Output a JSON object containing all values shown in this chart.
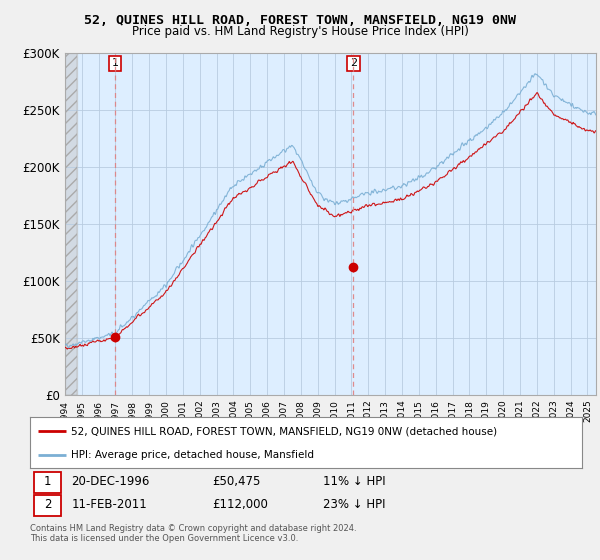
{
  "title": "52, QUINES HILL ROAD, FOREST TOWN, MANSFIELD, NG19 0NW",
  "subtitle": "Price paid vs. HM Land Registry's House Price Index (HPI)",
  "ylim": [
    0,
    300000
  ],
  "yticks": [
    0,
    50000,
    100000,
    150000,
    200000,
    250000,
    300000
  ],
  "ytick_labels": [
    "£0",
    "£50K",
    "£100K",
    "£150K",
    "£200K",
    "£250K",
    "£300K"
  ],
  "xstart": 1994.0,
  "xend": 2025.5,
  "sale1_date": 1996.97,
  "sale1_price": 50475,
  "sale2_date": 2011.12,
  "sale2_price": 112000,
  "sale1_date_str": "20-DEC-1996",
  "sale1_price_str": "£50,475",
  "sale1_hpi_str": "11% ↓ HPI",
  "sale2_date_str": "11-FEB-2011",
  "sale2_price_str": "£112,000",
  "sale2_hpi_str": "23% ↓ HPI",
  "hpi_color": "#7bafd4",
  "sale_color": "#cc0000",
  "vline_color": "#e08080",
  "plot_bg_color": "#ddeeff",
  "background_color": "#f0f0f0",
  "legend_label_sale": "52, QUINES HILL ROAD, FOREST TOWN, MANSFIELD, NG19 0NW (detached house)",
  "legend_label_hpi": "HPI: Average price, detached house, Mansfield",
  "footer": "Contains HM Land Registry data © Crown copyright and database right 2024.\nThis data is licensed under the Open Government Licence v3.0."
}
